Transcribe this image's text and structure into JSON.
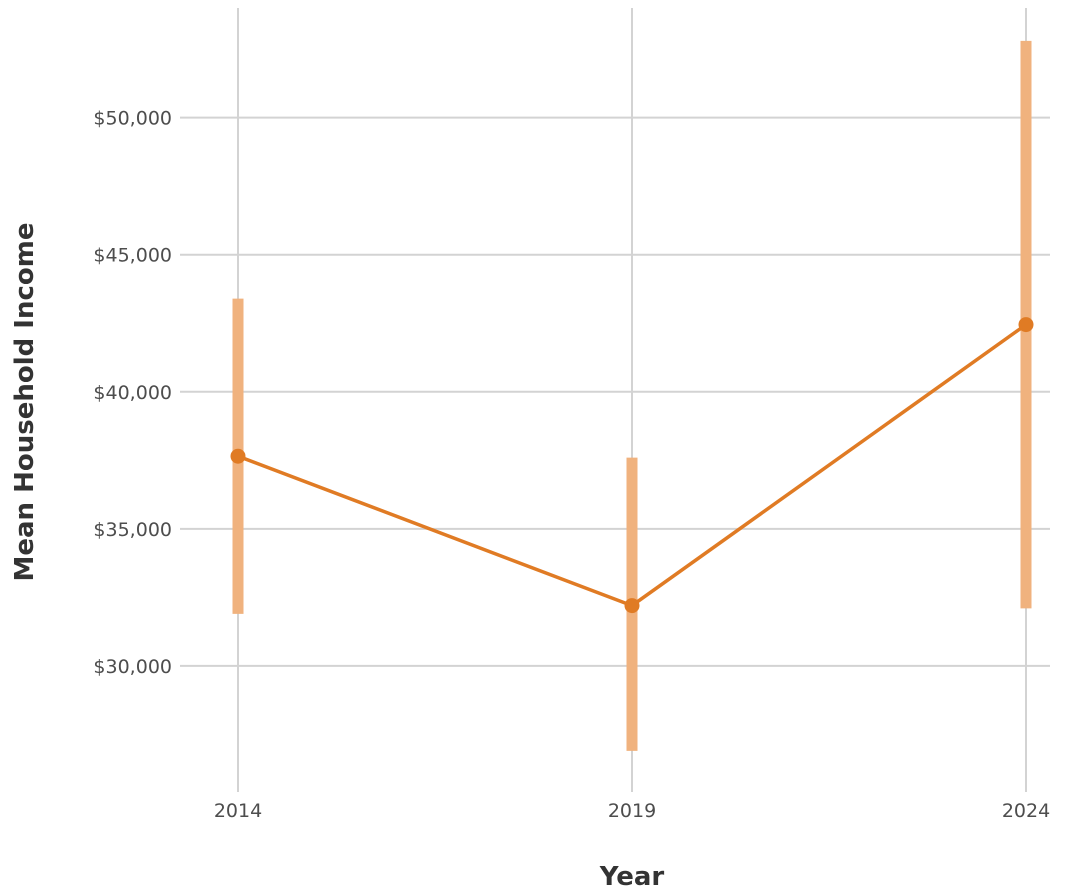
{
  "chart_data": {
    "type": "line",
    "title": "",
    "xlabel": "Year",
    "ylabel": "Mean Household Income",
    "categories": [
      "2014",
      "2019",
      "2024"
    ],
    "y_ticks": [
      30000,
      35000,
      40000,
      45000,
      50000
    ],
    "y_tick_labels": [
      "$30,000",
      "$35,000",
      "$40,000",
      "$45,000",
      "$50,000"
    ],
    "ylim": [
      25400,
      54000
    ],
    "grid": true,
    "series": [
      {
        "values": [
          37650,
          32200,
          42450
        ],
        "error_low": [
          31900,
          26900,
          32100
        ],
        "error_high": [
          43400,
          37600,
          52800
        ],
        "color": "#e07b24",
        "error_color": "#f0b27e"
      }
    ]
  }
}
